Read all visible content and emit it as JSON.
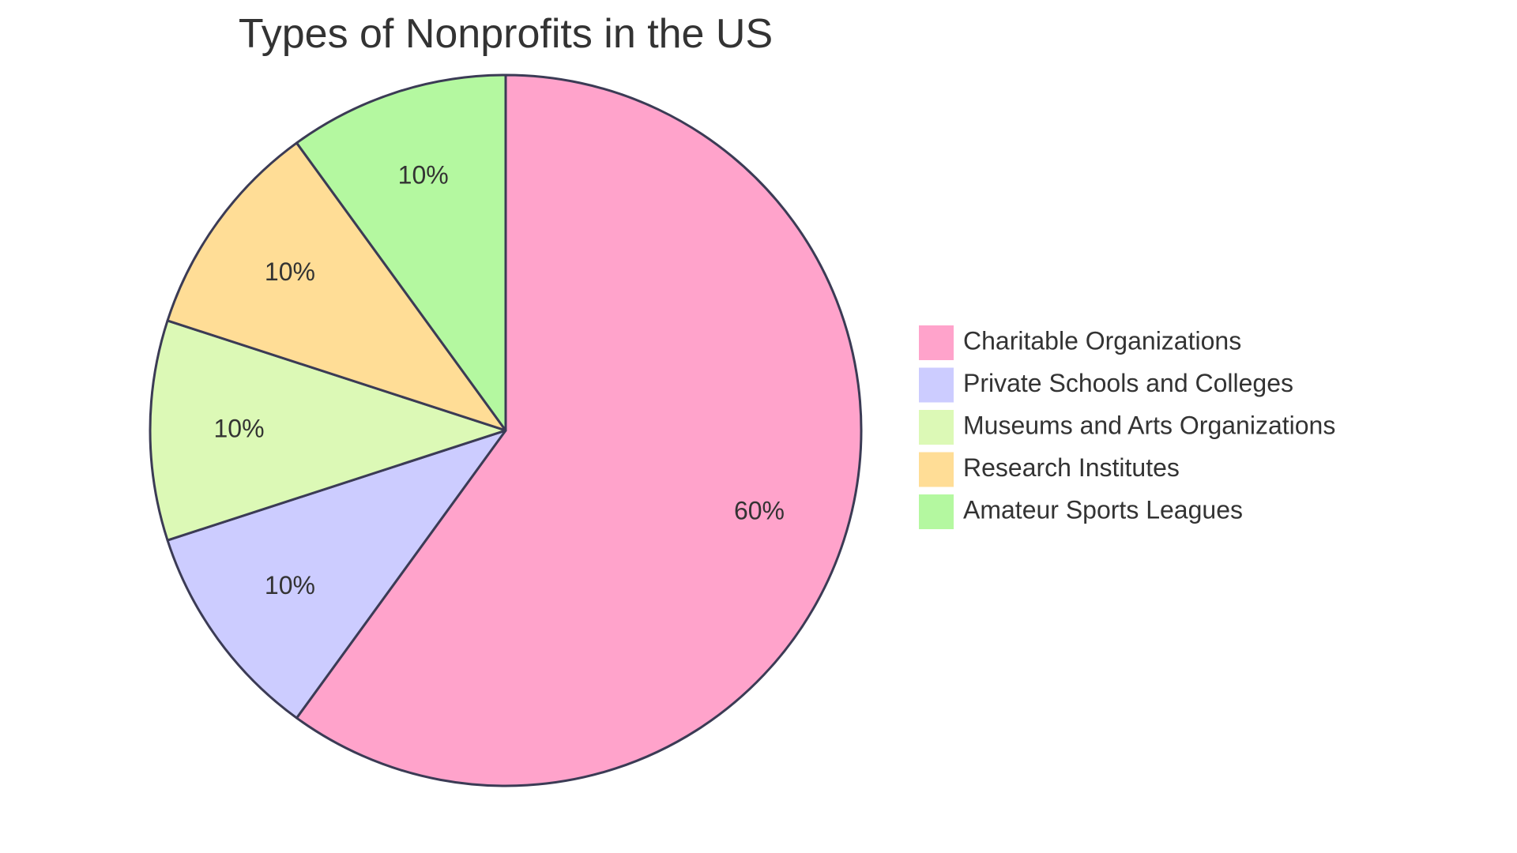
{
  "chart_data": {
    "type": "pie",
    "title": "Types of Nonprofits in the US",
    "categories": [
      "Charitable Organizations",
      "Private Schools and Colleges",
      "Museums and Arts Organizations",
      "Research Institutes",
      "Amateur Sports Leagues"
    ],
    "values": [
      60,
      10,
      10,
      10,
      10
    ],
    "value_labels": [
      "60%",
      "10%",
      "10%",
      "10%",
      "10%"
    ],
    "colors": [
      "#ffa3cb",
      "#ccccff",
      "#dcf9b6",
      "#ffdd96",
      "#b4f8a0"
    ],
    "legend_position": "right",
    "start_angle": "top",
    "direction": "clockwise"
  }
}
